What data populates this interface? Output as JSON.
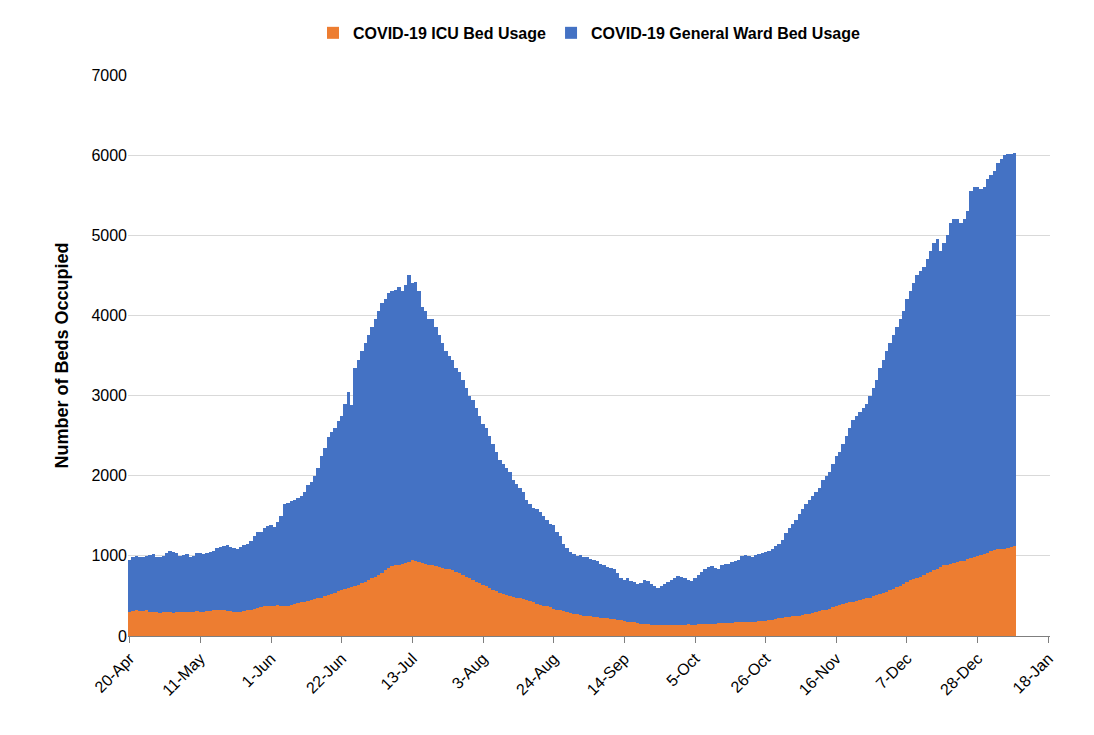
{
  "chart_data": {
    "type": "bar",
    "stacked": true,
    "grid": true,
    "legend": "top",
    "y_label": "Number of Beds Occupied",
    "ylim": [
      0,
      7000
    ],
    "yticks": [
      0,
      1000,
      2000,
      3000,
      4000,
      5000,
      6000,
      7000
    ],
    "categories": [
      "20-Apr",
      null,
      null,
      null,
      null,
      null,
      null,
      null,
      null,
      null,
      null,
      null,
      null,
      null,
      null,
      null,
      null,
      null,
      null,
      null,
      null,
      "11-May",
      null,
      null,
      null,
      null,
      null,
      null,
      null,
      null,
      null,
      null,
      null,
      null,
      null,
      null,
      null,
      null,
      null,
      null,
      null,
      null,
      "1-Jun",
      null,
      null,
      null,
      null,
      null,
      null,
      null,
      null,
      null,
      null,
      null,
      null,
      null,
      null,
      null,
      null,
      null,
      null,
      null,
      null,
      "22-Jun",
      null,
      null,
      null,
      null,
      null,
      null,
      null,
      null,
      null,
      null,
      null,
      null,
      null,
      null,
      null,
      null,
      null,
      null,
      null,
      null,
      "13-Jul",
      null,
      null,
      null,
      null,
      null,
      null,
      null,
      null,
      null,
      null,
      null,
      null,
      null,
      null,
      null,
      null,
      null,
      null,
      null,
      null,
      "3-Aug",
      null,
      null,
      null,
      null,
      null,
      null,
      null,
      null,
      null,
      null,
      null,
      null,
      null,
      null,
      null,
      null,
      null,
      null,
      null,
      null,
      "24-Aug",
      null,
      null,
      null,
      null,
      null,
      null,
      null,
      null,
      null,
      null,
      null,
      null,
      null,
      null,
      null,
      null,
      null,
      null,
      null,
      null,
      "14-Sep",
      null,
      null,
      null,
      null,
      null,
      null,
      null,
      null,
      null,
      null,
      null,
      null,
      null,
      null,
      null,
      null,
      null,
      null,
      null,
      null,
      "5-Oct",
      null,
      null,
      null,
      null,
      null,
      null,
      null,
      null,
      null,
      null,
      null,
      null,
      null,
      null,
      null,
      null,
      null,
      null,
      null,
      null,
      "26-Oct",
      null,
      null,
      null,
      null,
      null,
      null,
      null,
      null,
      null,
      null,
      null,
      null,
      null,
      null,
      null,
      null,
      null,
      null,
      null,
      null,
      "16-Nov",
      null,
      null,
      null,
      null,
      null,
      null,
      null,
      null,
      null,
      null,
      null,
      null,
      null,
      null,
      null,
      null,
      null,
      null,
      null,
      null,
      "7-Dec",
      null,
      null,
      null,
      null,
      null,
      null,
      null,
      null,
      null,
      null,
      null,
      null,
      null,
      null,
      null,
      null,
      null,
      null,
      null,
      null,
      "28-Dec",
      null,
      null,
      null,
      null,
      null,
      null,
      null,
      null,
      null,
      null,
      null,
      null,
      null,
      null,
      null,
      null,
      null,
      null,
      null,
      null,
      "18-Jan"
    ],
    "series": [
      {
        "name": "COVID-19 ICU Bed Usage",
        "color": "#ed7d31",
        "values": [
          300,
          310,
          320,
          315,
          310,
          320,
          305,
          300,
          295,
          290,
          300,
          300,
          295,
          290,
          300,
          300,
          305,
          300,
          295,
          300,
          310,
          305,
          300,
          310,
          315,
          320,
          325,
          330,
          320,
          315,
          310,
          300,
          295,
          305,
          310,
          320,
          330,
          340,
          350,
          360,
          370,
          375,
          380,
          380,
          385,
          380,
          375,
          380,
          390,
          400,
          410,
          420,
          430,
          440,
          450,
          460,
          470,
          480,
          500,
          510,
          520,
          540,
          560,
          580,
          590,
          600,
          610,
          620,
          640,
          660,
          680,
          700,
          720,
          740,
          760,
          790,
          820,
          850,
          870,
          880,
          890,
          900,
          910,
          920,
          950,
          930,
          920,
          910,
          900,
          890,
          880,
          870,
          860,
          850,
          840,
          830,
          820,
          800,
          780,
          760,
          740,
          720,
          700,
          680,
          660,
          640,
          620,
          600,
          580,
          560,
          540,
          520,
          510,
          500,
          490,
          480,
          470,
          460,
          450,
          440,
          420,
          400,
          390,
          380,
          370,
          360,
          340,
          330,
          320,
          310,
          300,
          290,
          280,
          270,
          260,
          255,
          250,
          245,
          240,
          235,
          230,
          225,
          220,
          215,
          210,
          205,
          200,
          190,
          180,
          175,
          170,
          160,
          155,
          150,
          145,
          140,
          140,
          140,
          140,
          135,
          135,
          140,
          140,
          140,
          140,
          140,
          145,
          140,
          140,
          145,
          145,
          150,
          150,
          155,
          155,
          160,
          160,
          160,
          165,
          165,
          170,
          170,
          175,
          175,
          180,
          180,
          180,
          185,
          185,
          190,
          195,
          200,
          210,
          220,
          230,
          235,
          240,
          245,
          250,
          255,
          260,
          270,
          280,
          290,
          300,
          310,
          320,
          330,
          340,
          360,
          380,
          390,
          400,
          410,
          420,
          430,
          440,
          450,
          460,
          470,
          480,
          500,
          510,
          520,
          540,
          550,
          570,
          590,
          610,
          630,
          650,
          680,
          700,
          710,
          720,
          740,
          760,
          780,
          800,
          820,
          840,
          860,
          880,
          890,
          900,
          910,
          920,
          930,
          940,
          960,
          970,
          990,
          1000,
          1010,
          1020,
          1040,
          1060,
          1070,
          1080,
          1080,
          1090,
          1100,
          1110,
          1120,
          null,
          null,
          null,
          null,
          null,
          null,
          null,
          null,
          null,
          null
        ]
      },
      {
        "name": "COVID-19 General Ward Bed Usage",
        "color": "#4472c4",
        "values": [
          650,
          670,
          680,
          665,
          680,
          680,
          705,
          720,
          695,
          690,
          700,
          740,
          765,
          760,
          730,
          700,
          705,
          720,
          695,
          700,
          720,
          735,
          720,
          720,
          735,
          740,
          775,
          780,
          800,
          815,
          800,
          800,
          795,
          805,
          820,
          830,
          850,
          910,
          950,
          940,
          980,
          995,
          1000,
          980,
          1035,
          1120,
          1275,
          1280,
          1290,
          1300,
          1310,
          1330,
          1370,
          1440,
          1470,
          1540,
          1630,
          1770,
          1850,
          1970,
          2030,
          2060,
          2120,
          2170,
          2310,
          2450,
          2270,
          2730,
          2810,
          2890,
          2970,
          3050,
          3130,
          3210,
          3290,
          3360,
          3380,
          3430,
          3430,
          3440,
          3460,
          3400,
          3470,
          3580,
          3450,
          3490,
          3380,
          3190,
          3150,
          3060,
          3070,
          2980,
          2890,
          2800,
          2710,
          2670,
          2630,
          2550,
          2520,
          2440,
          2360,
          2280,
          2250,
          2170,
          2090,
          2010,
          1980,
          1900,
          1820,
          1740,
          1660,
          1630,
          1590,
          1550,
          1460,
          1420,
          1380,
          1340,
          1250,
          1210,
          1180,
          1180,
          1160,
          1120,
          1080,
          1040,
          1040,
          970,
          930,
          840,
          800,
          760,
          740,
          730,
          750,
          735,
          730,
          715,
          710,
          705,
          670,
          655,
          640,
          635,
          620,
          575,
          520,
          510,
          540,
          515,
          510,
          490,
          505,
          550,
          545,
          510,
          480,
          460,
          480,
          515,
          545,
          560,
          580,
          610,
          600,
          580,
          555,
          550,
          580,
          615,
          655,
          680,
          710,
          715,
          695,
          680,
          720,
          740,
          735,
          755,
          760,
          780,
          825,
          835,
          820,
          810,
          830,
          835,
          855,
          860,
          865,
          880,
          910,
          930,
          970,
          1045,
          1110,
          1155,
          1200,
          1265,
          1320,
          1380,
          1420,
          1460,
          1500,
          1540,
          1630,
          1670,
          1710,
          1790,
          1870,
          1910,
          2000,
          2090,
          2180,
          2270,
          2310,
          2350,
          2390,
          2430,
          2520,
          2600,
          2690,
          2830,
          2910,
          3000,
          3080,
          3160,
          3240,
          3320,
          3400,
          3520,
          3600,
          3690,
          3780,
          3810,
          3840,
          3920,
          4000,
          4080,
          4110,
          3940,
          4020,
          4110,
          4250,
          4290,
          4280,
          4220,
          4260,
          4340,
          4580,
          4610,
          4600,
          4570,
          4580,
          4660,
          4690,
          4730,
          4820,
          4870,
          4910,
          4920,
          4910,
          4910,
          null,
          null,
          null,
          null,
          null,
          null,
          null,
          null,
          null,
          null
        ]
      }
    ]
  }
}
